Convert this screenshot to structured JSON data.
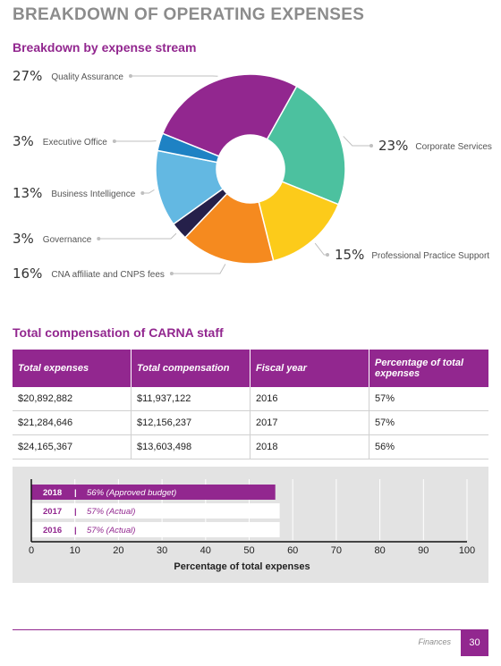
{
  "page_title": "BREAKDOWN OF OPERATING EXPENSES",
  "donut": {
    "section_title": "Breakdown by expense stream"
  },
  "table": {
    "section_title": "Total compensation of CARNA staff",
    "headers": [
      "Total expenses",
      "Total compensation",
      "Fiscal year",
      "Percentage of total expenses"
    ],
    "rows": [
      [
        "$20,892,882",
        "$11,937,122",
        "2016",
        "57%"
      ],
      [
        "$21,284,646",
        "$12,156,237",
        "2017",
        "57%"
      ],
      [
        "$24,165,367",
        "$13,603,498",
        "2018",
        "56%"
      ]
    ]
  },
  "footer": {
    "section": "Finances",
    "page": "30"
  },
  "chart_data": [
    {
      "type": "pie",
      "title": "Breakdown by expense stream",
      "slices": [
        {
          "label": "Quality Assurance",
          "pct_label": "27%",
          "value": 27,
          "color": "#92278f"
        },
        {
          "label": "Corporate Services",
          "pct_label": "23%",
          "value": 23,
          "color": "#4cc19f"
        },
        {
          "label": "Professional Practice Support",
          "pct_label": "15%",
          "value": 15,
          "color": "#fccb1a"
        },
        {
          "label": "CNA affiliate and CNPS fees",
          "pct_label": "16%",
          "value": 16,
          "color": "#f58a1f"
        },
        {
          "label": "Governance",
          "pct_label": "3%",
          "value": 3,
          "color": "#25204a"
        },
        {
          "label": "Business Intelligence",
          "pct_label": "13%",
          "value": 13,
          "color": "#63b8e2"
        },
        {
          "label": "Executive Office",
          "pct_label": "3%",
          "value": 3,
          "color": "#1e82c4"
        }
      ]
    },
    {
      "type": "bar",
      "orientation": "horizontal",
      "xlabel": "Percentage of total expenses",
      "xlim": [
        0,
        100
      ],
      "xticks": [
        "0",
        "10",
        "20",
        "30",
        "40",
        "50",
        "60",
        "70",
        "80",
        "90",
        "100"
      ],
      "bars": [
        {
          "year": "2018",
          "desc": "56% (Approved budget)",
          "value": 56,
          "highlight": true
        },
        {
          "year": "2017",
          "desc": "57% (Actual)",
          "value": 57,
          "highlight": false
        },
        {
          "year": "2016",
          "desc": "57% (Actual)",
          "value": 57,
          "highlight": false
        }
      ],
      "colors": {
        "highlight": "#92278f",
        "normal": "#ffffff"
      }
    }
  ]
}
